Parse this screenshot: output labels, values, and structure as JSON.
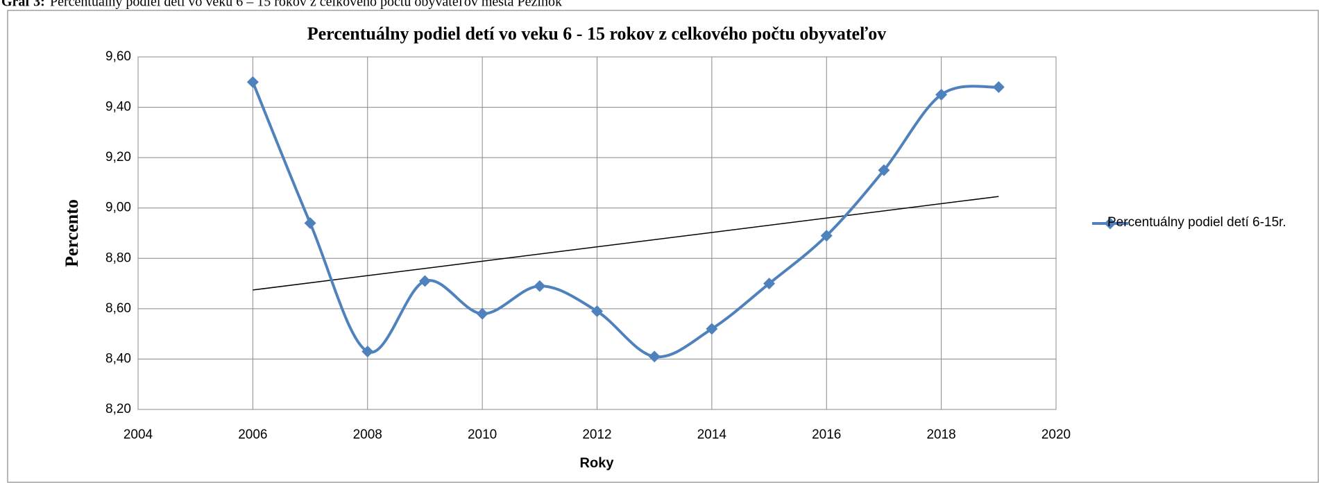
{
  "caption_label": "Graf 3:",
  "caption": "Percentuálny podiel detí vo veku 6 – 15 rokov z celkového počtu obyvateľov mesta Pezinok",
  "chart_data": {
    "type": "line",
    "title": "Percentuálny podiel detí vo veku 6 - 15 rokov z celkového počtu obyvateľov",
    "x_label": "Roky",
    "y_label": "Percento",
    "x": [
      2006,
      2007,
      2008,
      2009,
      2010,
      2011,
      2012,
      2013,
      2014,
      2015,
      2016,
      2017,
      2018,
      2019
    ],
    "series": [
      {
        "name": "Percentuálny podiel detí 6-15r.",
        "color": "#4f81bd",
        "values": [
          9.5,
          8.94,
          8.43,
          8.71,
          8.58,
          8.69,
          8.59,
          8.41,
          8.52,
          8.7,
          8.89,
          9.15,
          9.45,
          9.48
        ]
      }
    ],
    "smooth": true,
    "trendline": "linear",
    "trendline_color": "#000000",
    "xlim": [
      2004,
      2020
    ],
    "xticks": [
      2004,
      2006,
      2008,
      2010,
      2012,
      2014,
      2016,
      2018,
      2020
    ],
    "ylim": [
      8.2,
      9.6
    ],
    "yticks": [
      {
        "value": 8.2,
        "label": "8,20"
      },
      {
        "value": 8.4,
        "label": "8,40"
      },
      {
        "value": 8.6,
        "label": "8,60"
      },
      {
        "value": 8.8,
        "label": "8,80"
      },
      {
        "value": 9.0,
        "label": "9,00"
      },
      {
        "value": 9.2,
        "label": "9,20"
      },
      {
        "value": 9.4,
        "label": "9,40"
      },
      {
        "value": 9.6,
        "label": "9,60"
      }
    ],
    "grid": true,
    "legend": "right"
  }
}
